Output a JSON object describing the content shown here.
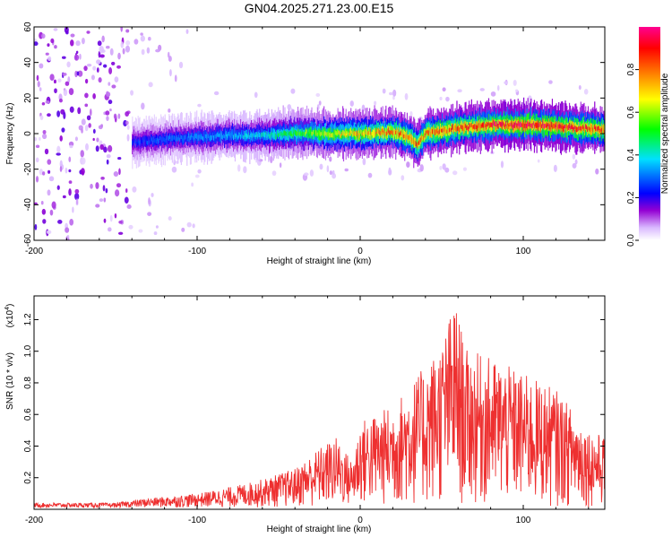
{
  "title": "GN04.2025.271.23.00.E15",
  "chart_data": [
    {
      "type": "heatmap",
      "name": "spectrogram",
      "xlabel": "Height of straight line (km)",
      "ylabel": "Frequency (Hz)",
      "xlim": [
        -200,
        150
      ],
      "ylim": [
        -60,
        60
      ],
      "xticks": [
        "-200",
        "-100",
        "0",
        "100"
      ],
      "xtick_values": [
        -200,
        -100,
        0,
        100
      ],
      "yticks": [
        "-60",
        "-40",
        "-20",
        "0",
        "20",
        "40",
        "60"
      ],
      "ytick_values": [
        -60,
        -40,
        -20,
        0,
        20,
        40,
        60
      ],
      "colorbar": {
        "label": "Normalized spectral amplitude",
        "range": [
          0,
          1
        ],
        "ticks": [
          "0.0",
          "0.2",
          "0.4",
          "0.6",
          "0.8"
        ],
        "tick_values": [
          0.0,
          0.2,
          0.4,
          0.6,
          0.8
        ],
        "colors": [
          "#ffffff",
          "#9400d3",
          "#0000ff",
          "#00e0ff",
          "#00ff00",
          "#ffff00",
          "#ff8000",
          "#ff0000",
          "#ff00a0"
        ]
      },
      "ridge": {
        "start_km": -140,
        "points": [
          [
            -140,
            -5
          ],
          [
            -120,
            -3
          ],
          [
            -100,
            -2
          ],
          [
            -80,
            -1
          ],
          [
            -60,
            -1
          ],
          [
            -40,
            0
          ],
          [
            -20,
            0
          ],
          [
            0,
            0
          ],
          [
            20,
            1
          ],
          [
            30,
            -2
          ],
          [
            35,
            -6
          ],
          [
            40,
            0
          ],
          [
            60,
            3
          ],
          [
            80,
            5
          ],
          [
            100,
            5
          ],
          [
            120,
            4
          ],
          [
            150,
            2
          ]
        ],
        "peak_amplitude": [
          [
            -140,
            0.25
          ],
          [
            -60,
            0.4
          ],
          [
            -20,
            0.65
          ],
          [
            20,
            0.8
          ],
          [
            60,
            0.85
          ],
          [
            100,
            0.95
          ],
          [
            150,
            0.85
          ]
        ]
      }
    },
    {
      "type": "line",
      "name": "snr",
      "xlabel": "Height of straight line (km)",
      "ylabel": "SNR (10 * v/v)",
      "multiplier_label": "(x10",
      "multiplier_exp": "4",
      "multiplier_close": ")",
      "xlim": [
        -200,
        150
      ],
      "ylim": [
        0,
        1.35
      ],
      "xticks": [
        "-200",
        "-100",
        "0",
        "100"
      ],
      "xtick_values": [
        -200,
        -100,
        0,
        100
      ],
      "yticks": [
        "0.2",
        "0.4",
        "0.6",
        "0.8",
        "1.0",
        "1.2"
      ],
      "ytick_values": [
        0.2,
        0.4,
        0.6,
        0.8,
        1.0,
        1.2
      ],
      "color": "#ee3030",
      "envelope": [
        [
          -200,
          0.03
        ],
        [
          -150,
          0.03
        ],
        [
          -130,
          0.06
        ],
        [
          -100,
          0.09
        ],
        [
          -80,
          0.13
        ],
        [
          -60,
          0.18
        ],
        [
          -40,
          0.25
        ],
        [
          -25,
          0.38
        ],
        [
          -15,
          0.45
        ],
        [
          -5,
          0.3
        ],
        [
          0,
          0.55
        ],
        [
          20,
          0.65
        ],
        [
          40,
          0.9
        ],
        [
          50,
          1.05
        ],
        [
          58,
          1.32
        ],
        [
          65,
          1.0
        ],
        [
          80,
          0.95
        ],
        [
          100,
          0.85
        ],
        [
          120,
          0.75
        ],
        [
          140,
          0.5
        ],
        [
          150,
          0.45
        ]
      ]
    }
  ]
}
